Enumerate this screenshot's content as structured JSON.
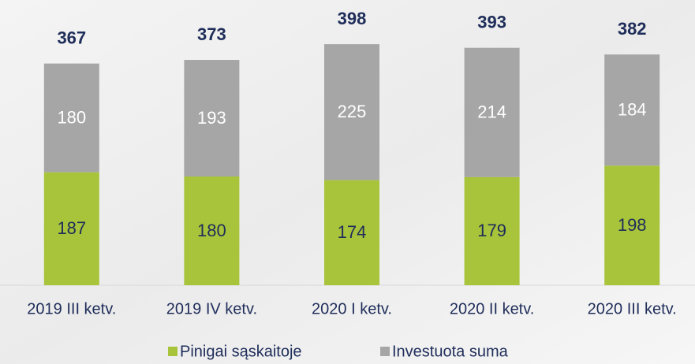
{
  "chart_data": {
    "type": "stacked_bar",
    "categories": [
      "2019 III ketv.",
      "2019 IV ketv.",
      "2020 I ketv.",
      "2020 II ketv.",
      "2020 III ketv."
    ],
    "series": [
      {
        "name": "Pinigai sąskaitoje",
        "color": "#a8c43a",
        "values": [
          187,
          180,
          174,
          179,
          198
        ]
      },
      {
        "name": "Investuota suma",
        "color": "#a6a6a6",
        "values": [
          180,
          193,
          225,
          214,
          184
        ]
      }
    ],
    "totals": [
      367,
      373,
      398,
      393,
      382
    ],
    "ylim": [
      0,
      420
    ],
    "legend": "bottom"
  }
}
